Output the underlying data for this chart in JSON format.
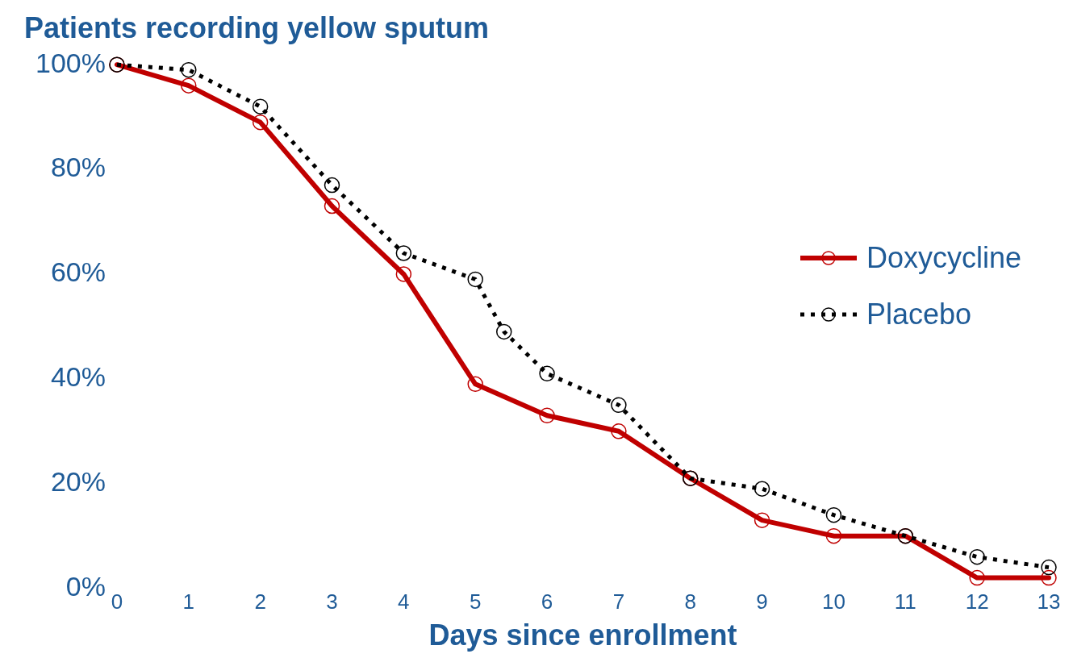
{
  "chart_data": {
    "type": "line",
    "title": "Patients recording yellow sputum",
    "xlabel": "Days since enrollment",
    "xlim": [
      0,
      13
    ],
    "xticks": [
      0,
      1,
      2,
      3,
      4,
      5,
      6,
      7,
      8,
      9,
      10,
      11,
      12,
      13
    ],
    "ylim": [
      0,
      100
    ],
    "yticks": [
      {
        "value": 0,
        "label": "0%"
      },
      {
        "value": 20,
        "label": "20%"
      },
      {
        "value": 40,
        "label": "40%"
      },
      {
        "value": 60,
        "label": "60%"
      },
      {
        "value": 80,
        "label": "80%"
      },
      {
        "value": 100,
        "label": "100%"
      }
    ],
    "grid": false,
    "legend": "right",
    "marker": "circle",
    "series": [
      {
        "name": "Doxycycline",
        "color": "#c00000",
        "line_style": "solid",
        "x": [
          0,
          1,
          2,
          3,
          4,
          5,
          6,
          7,
          8,
          9,
          10,
          11,
          12,
          13
        ],
        "values": [
          100,
          96,
          89,
          73,
          60,
          39,
          33,
          30,
          21,
          13,
          10,
          10,
          2,
          2
        ]
      },
      {
        "name": "Placebo",
        "color": "#000000",
        "line_style": "dotted",
        "x": [
          0,
          1,
          2,
          3,
          4,
          5,
          5.4,
          6,
          7,
          8,
          9,
          10,
          11,
          12,
          13
        ],
        "values": [
          100,
          99,
          92,
          77,
          64,
          59,
          49,
          41,
          35,
          21,
          19,
          14,
          10,
          6,
          4
        ]
      }
    ]
  }
}
